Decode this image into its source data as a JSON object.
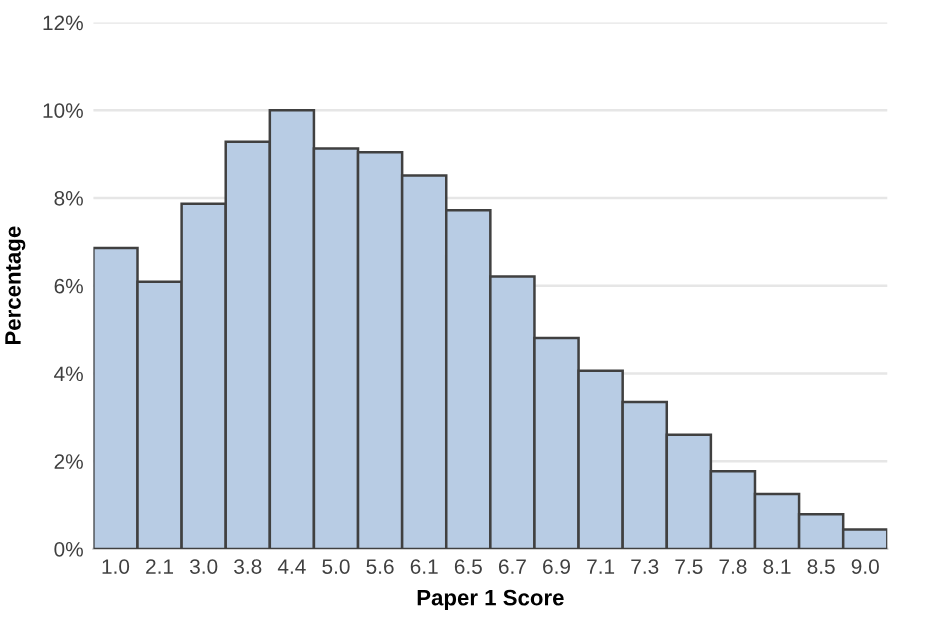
{
  "chart_data": {
    "type": "bar",
    "xlabel": "Paper 1 Score",
    "ylabel": "Percentage",
    "categories": [
      "1.0",
      "2.1",
      "3.0",
      "3.8",
      "4.4",
      "5.0",
      "5.6",
      "6.1",
      "6.5",
      "6.7",
      "6.9",
      "7.1",
      "7.3",
      "7.5",
      "7.8",
      "8.1",
      "8.5",
      "9.0"
    ],
    "values": [
      6.86,
      6.09,
      7.87,
      9.28,
      10.0,
      9.13,
      9.04,
      8.51,
      7.72,
      6.21,
      4.81,
      4.06,
      3.35,
      2.6,
      1.77,
      1.25,
      0.79,
      0.44
    ],
    "color": "#b8cce4",
    "ylim": [
      0,
      12
    ],
    "yticks": [
      {
        "value": 0,
        "label": "0%"
      },
      {
        "value": 2,
        "label": "2%"
      },
      {
        "value": 4,
        "label": "4%"
      },
      {
        "value": 6,
        "label": "6%"
      },
      {
        "value": 8,
        "label": "8%"
      },
      {
        "value": 10,
        "label": "10%"
      },
      {
        "value": 12,
        "label": "12%"
      }
    ],
    "grid": "y",
    "legend": false
  }
}
